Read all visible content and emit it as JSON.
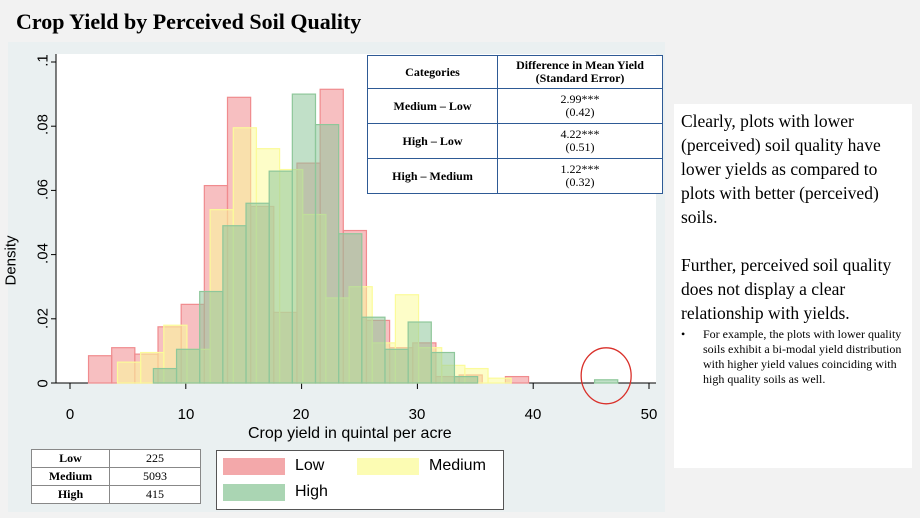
{
  "slide": {
    "title": "Crop Yield by Perceived Soil Quality"
  },
  "chart_data": {
    "type": "bar",
    "subtype": "overlapping histogram (density)",
    "xlabel": "Crop yield in quintal per acre",
    "ylabel": "Density",
    "xlim": [
      0,
      50
    ],
    "ylim": [
      0,
      0.1
    ],
    "xticks": [
      0,
      10,
      20,
      30,
      40,
      50
    ],
    "xtick_labels": [
      "0",
      "10",
      "20",
      "30",
      "40",
      "50"
    ],
    "yticks": [
      0,
      0.02,
      0.04,
      0.06,
      0.08,
      0.1
    ],
    "ytick_labels": [
      "0",
      ".02",
      ".04",
      ".06",
      ".08",
      ".1"
    ],
    "bin_width": 2,
    "legend_position": "bottom",
    "series": [
      {
        "name": "Low",
        "color": "#f08b8e",
        "bins": [
          {
            "x0": 1.6,
            "x1": 3.6,
            "density": 0.0085
          },
          {
            "x0": 3.6,
            "x1": 5.6,
            "density": 0.011
          },
          {
            "x0": 5.6,
            "x1": 7.6,
            "density": 0.009
          },
          {
            "x0": 7.6,
            "x1": 9.6,
            "density": 0.0175
          },
          {
            "x0": 9.6,
            "x1": 11.6,
            "density": 0.0245
          },
          {
            "x0": 11.6,
            "x1": 13.6,
            "density": 0.0615
          },
          {
            "x0": 13.6,
            "x1": 15.6,
            "density": 0.089
          },
          {
            "x0": 15.6,
            "x1": 17.6,
            "density": 0.055
          },
          {
            "x0": 17.6,
            "x1": 19.6,
            "density": 0.022
          },
          {
            "x0": 19.6,
            "x1": 21.6,
            "density": 0.0685
          },
          {
            "x0": 21.6,
            "x1": 23.6,
            "density": 0.0915
          },
          {
            "x0": 23.6,
            "x1": 25.6,
            "density": 0.0475
          },
          {
            "x0": 25.6,
            "x1": 27.6,
            "density": 0.0195
          },
          {
            "x0": 27.6,
            "x1": 29.6,
            "density": 0.011
          },
          {
            "x0": 29.6,
            "x1": 31.6,
            "density": 0.0125
          },
          {
            "x0": 31.6,
            "x1": 33.6,
            "density": 0.002
          },
          {
            "x0": 33.6,
            "x1": 35.6,
            "density": 0.0025
          },
          {
            "x0": 35.6,
            "x1": 37.6,
            "density": 0.0
          },
          {
            "x0": 37.6,
            "x1": 39.6,
            "density": 0.002
          }
        ]
      },
      {
        "name": "Medium",
        "color": "#fbfb9a",
        "bins": [
          {
            "x0": 4.1,
            "x1": 6.1,
            "density": 0.0065
          },
          {
            "x0": 6.1,
            "x1": 8.1,
            "density": 0.0095
          },
          {
            "x0": 8.1,
            "x1": 10.1,
            "density": 0.018
          },
          {
            "x0": 10.1,
            "x1": 12.1,
            "density": 0.0105
          },
          {
            "x0": 12.1,
            "x1": 14.1,
            "density": 0.054
          },
          {
            "x0": 14.1,
            "x1": 16.1,
            "density": 0.0795
          },
          {
            "x0": 16.1,
            "x1": 18.1,
            "density": 0.073
          },
          {
            "x0": 18.1,
            "x1": 20.1,
            "density": 0.0665
          },
          {
            "x0": 20.1,
            "x1": 22.1,
            "density": 0.0525
          },
          {
            "x0": 22.1,
            "x1": 24.1,
            "density": 0.0265
          },
          {
            "x0": 24.1,
            "x1": 26.1,
            "density": 0.03
          },
          {
            "x0": 26.1,
            "x1": 28.1,
            "density": 0.0125
          },
          {
            "x0": 28.1,
            "x1": 30.1,
            "density": 0.0275
          },
          {
            "x0": 30.1,
            "x1": 32.1,
            "density": 0.011
          },
          {
            "x0": 32.1,
            "x1": 34.1,
            "density": 0.0055
          },
          {
            "x0": 34.1,
            "x1": 36.1,
            "density": 0.0045
          },
          {
            "x0": 36.1,
            "x1": 38.1,
            "density": 0.0015
          }
        ]
      },
      {
        "name": "High",
        "color": "#8ec79a",
        "bins": [
          {
            "x0": 7.2,
            "x1": 9.2,
            "density": 0.0045
          },
          {
            "x0": 9.2,
            "x1": 11.2,
            "density": 0.0105
          },
          {
            "x0": 11.2,
            "x1": 13.2,
            "density": 0.0285
          },
          {
            "x0": 13.2,
            "x1": 15.2,
            "density": 0.049
          },
          {
            "x0": 15.2,
            "x1": 17.2,
            "density": 0.056
          },
          {
            "x0": 17.2,
            "x1": 19.2,
            "density": 0.066
          },
          {
            "x0": 19.2,
            "x1": 21.2,
            "density": 0.09
          },
          {
            "x0": 21.2,
            "x1": 23.2,
            "density": 0.0805
          },
          {
            "x0": 23.2,
            "x1": 25.2,
            "density": 0.0465
          },
          {
            "x0": 25.2,
            "x1": 27.2,
            "density": 0.0205
          },
          {
            "x0": 27.2,
            "x1": 29.2,
            "density": 0.0105
          },
          {
            "x0": 29.2,
            "x1": 31.2,
            "density": 0.019
          },
          {
            "x0": 31.2,
            "x1": 33.2,
            "density": 0.0095
          },
          {
            "x0": 33.2,
            "x1": 35.2,
            "density": 0.002
          },
          {
            "x0": 45.3,
            "x1": 47.3,
            "density": 0.001
          }
        ]
      }
    ],
    "annotation": {
      "type": "circle-highlight",
      "around_x": 46.3,
      "around_y": 0.001,
      "color": "#d9302a"
    }
  },
  "difference_table": {
    "headers": [
      "Categories",
      "Difference in Mean Yield",
      "(Standard Error)"
    ],
    "rows": [
      {
        "category": "Medium – Low",
        "diff": "2.99***",
        "se": "(0.42)"
      },
      {
        "category": "High – Low",
        "diff": "4.22***",
        "se": "(0.51)"
      },
      {
        "category": "High – Medium",
        "diff": "1.22***",
        "se": "(0.32)"
      }
    ]
  },
  "count_table": {
    "rows": [
      {
        "label": "Low",
        "count": "225"
      },
      {
        "label": "Medium",
        "count": "5093"
      },
      {
        "label": "High",
        "count": "415"
      }
    ]
  },
  "notes": {
    "para1": "Clearly, plots with lower (perceived) soil quality have lower yields as compared to plots with better (perceived) soils.",
    "para2": "Further, perceived soil quality does not display a clear relationship with yields.",
    "bullet_marker": "•",
    "bullet": "For example, the plots with lower quality soils exhibit a bi-modal yield distribution with higher yield values coinciding with high quality soils as well."
  }
}
